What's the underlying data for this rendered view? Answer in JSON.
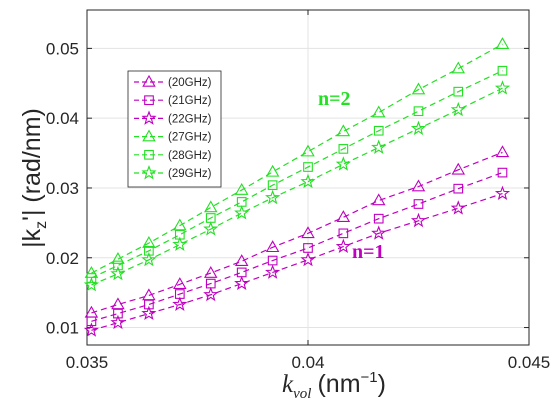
{
  "chart_data": {
    "type": "line",
    "xlabel": "k",
    "xlabel_sub": "vol",
    "xlabel_unit": "(nm",
    "xlabel_unit_sup": "−1",
    "xlabel_unit_close": ")",
    "ylabel": "|k",
    "ylabel_sub": "z",
    "ylabel_rest": "'| (rad/nm)",
    "xlim": [
      0.035,
      0.045
    ],
    "ylim": [
      0.0075,
      0.0555
    ],
    "xticks": [
      0.035,
      0.04,
      0.045
    ],
    "xtick_labels": [
      "0.035",
      "0.04",
      "0.045"
    ],
    "yticks": [
      0.01,
      0.02,
      0.03,
      0.04,
      0.05
    ],
    "ytick_labels": [
      "0.01",
      "0.02",
      "0.03",
      "0.04",
      "0.05"
    ],
    "grid": true,
    "legend_position": "upper-left",
    "x": [
      0.0351,
      0.0357,
      0.0364,
      0.0371,
      0.0378,
      0.0385,
      0.0392,
      0.04,
      0.0408,
      0.0416,
      0.0425,
      0.0434,
      0.0444
    ],
    "series": [
      {
        "name": "(20GHz)",
        "color": "#c000c0",
        "marker": "triangle",
        "values": [
          0.0121,
          0.0133,
          0.0146,
          0.0162,
          0.0178,
          0.0195,
          0.0215,
          0.0235,
          0.0258,
          0.0282,
          0.0302,
          0.0326,
          0.0351
        ]
      },
      {
        "name": "(21GHz)",
        "color": "#c000c0",
        "marker": "square",
        "values": [
          0.0109,
          0.012,
          0.0133,
          0.0148,
          0.0163,
          0.0179,
          0.0196,
          0.0214,
          0.0235,
          0.0256,
          0.0277,
          0.0299,
          0.0322
        ]
      },
      {
        "name": "(22GHz)",
        "color": "#c000c0",
        "marker": "star",
        "values": [
          0.0096,
          0.0107,
          0.012,
          0.0133,
          0.0147,
          0.0163,
          0.0179,
          0.0197,
          0.0216,
          0.0235,
          0.0253,
          0.0271,
          0.0292
        ]
      },
      {
        "name": "(27GHz)",
        "color": "#22e022",
        "marker": "triangle",
        "values": [
          0.0178,
          0.0198,
          0.0221,
          0.0246,
          0.0272,
          0.0297,
          0.0323,
          0.0352,
          0.0381,
          0.0408,
          0.0441,
          0.0471,
          0.0506
        ]
      },
      {
        "name": "(28GHz)",
        "color": "#22e022",
        "marker": "square",
        "values": [
          0.0171,
          0.0189,
          0.021,
          0.0233,
          0.0257,
          0.028,
          0.0304,
          0.033,
          0.0356,
          0.0382,
          0.041,
          0.0438,
          0.0468
        ]
      },
      {
        "name": "(29GHz)",
        "color": "#22e022",
        "marker": "star",
        "values": [
          0.0161,
          0.0177,
          0.0197,
          0.0219,
          0.0241,
          0.0264,
          0.0286,
          0.0309,
          0.0334,
          0.0358,
          0.0385,
          0.0412,
          0.0443
        ]
      }
    ],
    "annotations": [
      {
        "text": "n=2",
        "color": "#22e022"
      },
      {
        "text": "n=1",
        "color": "#c000c0"
      }
    ]
  }
}
